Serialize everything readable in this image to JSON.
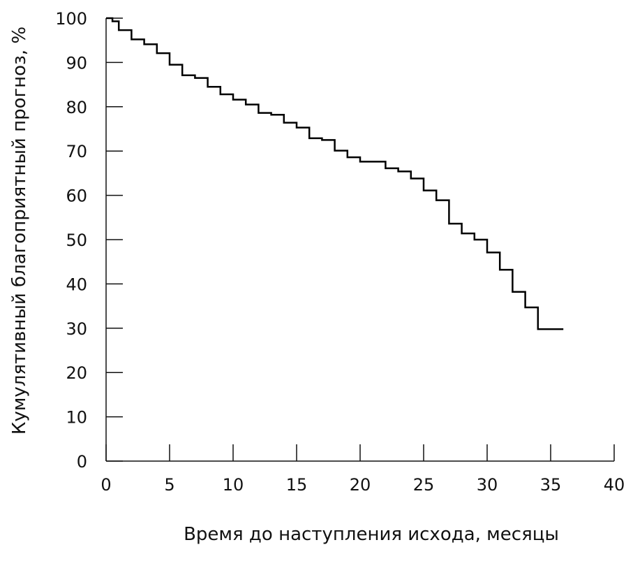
{
  "chart_data": {
    "type": "line",
    "step": true,
    "title": "",
    "xlabel": "Время до наступления исхода, месяцы",
    "ylabel": "Кумулятивный благоприятный прогноз, %",
    "xlim": [
      0,
      40
    ],
    "ylim": [
      0,
      100
    ],
    "xticks": [
      0,
      5,
      10,
      15,
      20,
      25,
      30,
      35,
      40
    ],
    "yticks": [
      0,
      10,
      20,
      30,
      40,
      50,
      60,
      70,
      80,
      90,
      100
    ],
    "grid": false,
    "line_color": "#000000",
    "series": [
      {
        "x": [
          0,
          0.5,
          1,
          2,
          3,
          4,
          5,
          6,
          7,
          8,
          9,
          10,
          11,
          12,
          13,
          14,
          15,
          16,
          17,
          18,
          19,
          20,
          22,
          23,
          24,
          25,
          26,
          27,
          28,
          29,
          30,
          31,
          32,
          33,
          34,
          36
        ],
        "y": [
          100,
          99.3,
          97.3,
          95.2,
          94.1,
          92.1,
          89.5,
          87.1,
          86.5,
          84.5,
          82.8,
          81.6,
          80.5,
          78.6,
          78.2,
          76.4,
          75.3,
          72.9,
          72.5,
          70.1,
          68.6,
          67.6,
          66.1,
          65.4,
          63.8,
          61.1,
          58.9,
          53.6,
          51.4,
          50.0,
          47.1,
          43.2,
          38.2,
          34.7,
          29.8,
          29.8
        ]
      }
    ]
  }
}
